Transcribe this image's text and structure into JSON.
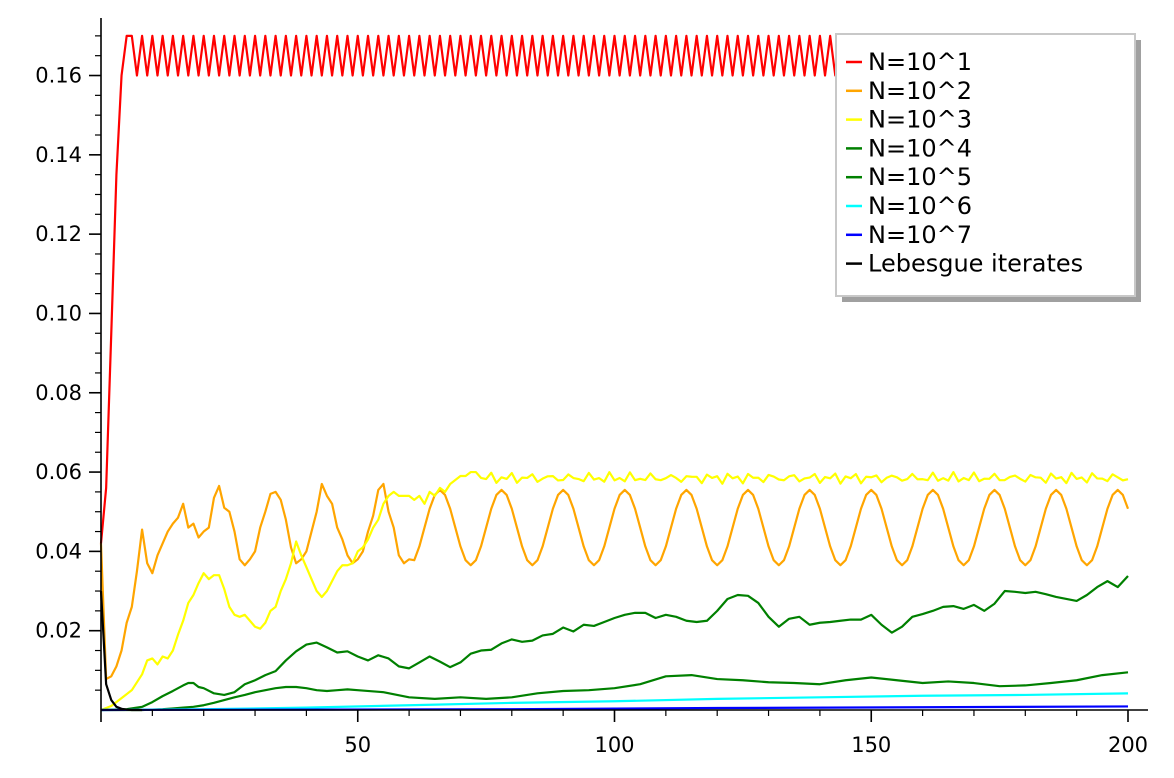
{
  "chart_data": {
    "type": "line",
    "title": "",
    "xlabel": "",
    "ylabel": "",
    "xlim": [
      0,
      200
    ],
    "ylim": [
      0,
      0.174
    ],
    "x_ticks": [
      50,
      100,
      150,
      200
    ],
    "y_ticks": [
      0.02,
      0.04,
      0.06,
      0.08,
      0.1,
      0.12,
      0.14,
      0.16
    ],
    "x_tick_labels": [
      "50",
      "100",
      "150",
      "200"
    ],
    "y_tick_labels": [
      "0.02",
      "0.04",
      "0.06",
      "0.08",
      "0.10",
      "0.12",
      "0.14",
      "0.16"
    ],
    "grid": false,
    "legend_position": "top-right",
    "series": [
      {
        "name": "N=10^1",
        "color": "#ff0000",
        "pattern": "alternating",
        "x": [
          0,
          1,
          2,
          3,
          4,
          5
        ],
        "values": [
          0.042,
          0.056,
          0.095,
          0.135,
          0.16,
          0.17
        ],
        "periodic": {
          "start": 6,
          "end": 200,
          "high": 0.17,
          "low": 0.16,
          "period": 2
        }
      },
      {
        "name": "N=10^2",
        "color": "#ffa500",
        "pattern": "points",
        "x": [
          0,
          1,
          2,
          3,
          4,
          5,
          6,
          7,
          8,
          9,
          10,
          11,
          12,
          13,
          14,
          15,
          16,
          17,
          18,
          19,
          20,
          21,
          22,
          23,
          24,
          25,
          26,
          27,
          28,
          29,
          30,
          31,
          32,
          33,
          34,
          35,
          36,
          37,
          38,
          39,
          40,
          41,
          42,
          43,
          44,
          45,
          46,
          47,
          48,
          49,
          50,
          51,
          52,
          53,
          54,
          55,
          56,
          57,
          58,
          59,
          60
        ],
        "values": [
          0.042,
          0.0078,
          0.0085,
          0.011,
          0.015,
          0.022,
          0.026,
          0.035,
          0.0455,
          0.037,
          0.0345,
          0.039,
          0.042,
          0.045,
          0.047,
          0.0485,
          0.052,
          0.046,
          0.047,
          0.0435,
          0.045,
          0.046,
          0.0535,
          0.0565,
          0.051,
          0.05,
          0.045,
          0.038,
          0.0365,
          0.038,
          0.04,
          0.046,
          0.05,
          0.0545,
          0.055,
          0.053,
          0.048,
          0.041,
          0.037,
          0.038,
          0.04,
          0.045,
          0.05,
          0.057,
          0.054,
          0.052,
          0.046,
          0.043,
          0.039,
          0.037,
          0.038,
          0.04,
          0.045,
          0.049,
          0.0555,
          0.057,
          0.05,
          0.046,
          0.039,
          0.037,
          0.038
        ],
        "periodic_wave": {
          "start": 60,
          "end": 200,
          "period": 12,
          "min": 0.0365,
          "max": 0.0555
        }
      },
      {
        "name": "N=10^3",
        "color": "#ffff00",
        "pattern": "points",
        "x": [
          0,
          2,
          4,
          6,
          8,
          9,
          10,
          11,
          12,
          13,
          14,
          15,
          16,
          17,
          18,
          19,
          20,
          21,
          22,
          23,
          24,
          25,
          26,
          27,
          28,
          29,
          30,
          31,
          32,
          33,
          34,
          35,
          36,
          37,
          38,
          39,
          40,
          41,
          42,
          43,
          44,
          45,
          46,
          47,
          48,
          49,
          50,
          51,
          52,
          53,
          54,
          55,
          56,
          57,
          58,
          59,
          60,
          61,
          62,
          63,
          64,
          65,
          66,
          67,
          68,
          69,
          70,
          71,
          72,
          73
        ],
        "values": [
          0.0,
          0.001,
          0.003,
          0.005,
          0.009,
          0.0125,
          0.013,
          0.0115,
          0.0135,
          0.013,
          0.015,
          0.019,
          0.0225,
          0.027,
          0.029,
          0.032,
          0.0345,
          0.033,
          0.034,
          0.034,
          0.0305,
          0.026,
          0.024,
          0.0235,
          0.024,
          0.0225,
          0.021,
          0.0205,
          0.022,
          0.025,
          0.026,
          0.03,
          0.033,
          0.037,
          0.0425,
          0.039,
          0.036,
          0.033,
          0.03,
          0.0285,
          0.03,
          0.0325,
          0.035,
          0.0365,
          0.0365,
          0.037,
          0.04,
          0.041,
          0.043,
          0.046,
          0.048,
          0.052,
          0.054,
          0.055,
          0.054,
          0.054,
          0.054,
          0.053,
          0.054,
          0.052,
          0.055,
          0.054,
          0.056,
          0.055,
          0.057,
          0.058,
          0.059,
          0.059,
          0.06,
          0.06
        ],
        "noise_band": {
          "start": 73,
          "end": 200,
          "center": 0.0585,
          "amplitude": 0.0015
        }
      },
      {
        "name": "N=10^4",
        "color": "#008000",
        "pattern": "points",
        "x": [
          0,
          5,
          8,
          10,
          12,
          14,
          16,
          17,
          18,
          19,
          20,
          22,
          24,
          26,
          28,
          30,
          32,
          34,
          36,
          38,
          40,
          42,
          44,
          46,
          48,
          50,
          52,
          54,
          56,
          58,
          60,
          62,
          64,
          66,
          68,
          70,
          72,
          74,
          76,
          78,
          80,
          82,
          84,
          86,
          88,
          90,
          92,
          94,
          96,
          98,
          100,
          102,
          104,
          106,
          108,
          110,
          112,
          114,
          116,
          118,
          120,
          122,
          124,
          126,
          128,
          130,
          132,
          134,
          136,
          138,
          140,
          142,
          144,
          146,
          148,
          150,
          152,
          154,
          156,
          158,
          160,
          162,
          164,
          166,
          168,
          170,
          172,
          174,
          176,
          178,
          180,
          182,
          184,
          186,
          188,
          190,
          192,
          194,
          196,
          198,
          200
        ],
        "values": [
          0.0,
          0.0002,
          0.0008,
          0.002,
          0.0035,
          0.0048,
          0.0062,
          0.0068,
          0.0068,
          0.0058,
          0.0055,
          0.0042,
          0.0038,
          0.0045,
          0.0065,
          0.0075,
          0.0088,
          0.0098,
          0.0125,
          0.0148,
          0.0165,
          0.017,
          0.0158,
          0.0145,
          0.0148,
          0.0135,
          0.0125,
          0.0138,
          0.013,
          0.011,
          0.0105,
          0.012,
          0.0135,
          0.0122,
          0.0108,
          0.012,
          0.0142,
          0.015,
          0.0152,
          0.0168,
          0.0178,
          0.0172,
          0.0175,
          0.0188,
          0.0192,
          0.0208,
          0.0198,
          0.0215,
          0.0212,
          0.0222,
          0.0232,
          0.024,
          0.0245,
          0.0245,
          0.0232,
          0.024,
          0.0235,
          0.0225,
          0.0222,
          0.0225,
          0.025,
          0.028,
          0.029,
          0.0288,
          0.027,
          0.0235,
          0.021,
          0.023,
          0.0235,
          0.0215,
          0.022,
          0.0222,
          0.0225,
          0.0228,
          0.0228,
          0.024,
          0.0215,
          0.0195,
          0.021,
          0.0235,
          0.0242,
          0.025,
          0.026,
          0.0262,
          0.0255,
          0.0265,
          0.025,
          0.0268,
          0.03,
          0.0298,
          0.0295,
          0.0298,
          0.0292,
          0.0285,
          0.028,
          0.0275,
          0.029,
          0.031,
          0.0325,
          0.031,
          0.0338
        ]
      },
      {
        "name": "N=10^5",
        "color": "#008000",
        "pattern": "points",
        "x": [
          0,
          8,
          12,
          14,
          16,
          18,
          20,
          22,
          24,
          26,
          28,
          30,
          32,
          34,
          36,
          38,
          40,
          42,
          44,
          46,
          48,
          50,
          55,
          60,
          65,
          70,
          75,
          80,
          85,
          90,
          95,
          100,
          105,
          110,
          115,
          120,
          125,
          130,
          135,
          140,
          145,
          150,
          155,
          160,
          165,
          170,
          175,
          180,
          185,
          190,
          195,
          200
        ],
        "values": [
          0.0,
          0.0,
          0.0002,
          0.0004,
          0.0006,
          0.0008,
          0.0012,
          0.0018,
          0.0025,
          0.0032,
          0.0038,
          0.0045,
          0.005,
          0.0055,
          0.0058,
          0.0058,
          0.0055,
          0.005,
          0.0048,
          0.005,
          0.0052,
          0.005,
          0.0045,
          0.0032,
          0.0028,
          0.0032,
          0.0028,
          0.0032,
          0.0042,
          0.0048,
          0.005,
          0.0055,
          0.0065,
          0.0085,
          0.0088,
          0.0078,
          0.0075,
          0.007,
          0.0068,
          0.0065,
          0.0075,
          0.0082,
          0.0075,
          0.0068,
          0.0072,
          0.0068,
          0.006,
          0.0062,
          0.0068,
          0.0075,
          0.0088,
          0.0095
        ]
      },
      {
        "name": "N=10^6",
        "color": "#00ffff",
        "pattern": "points",
        "x": [
          0,
          20,
          40,
          60,
          80,
          100,
          120,
          140,
          160,
          180,
          200
        ],
        "values": [
          0.0,
          0.0002,
          0.0006,
          0.0012,
          0.0018,
          0.0022,
          0.0028,
          0.0032,
          0.0036,
          0.0038,
          0.0042
        ]
      },
      {
        "name": "N=10^7",
        "color": "#0000ff",
        "pattern": "points",
        "x": [
          0,
          40,
          80,
          120,
          160,
          200
        ],
        "values": [
          0.0,
          0.0001,
          0.0002,
          0.0005,
          0.0007,
          0.0009
        ]
      },
      {
        "name": "Lebesgue iterates",
        "color": "#000000",
        "pattern": "points",
        "x": [
          0,
          1,
          2,
          3,
          4,
          5,
          6,
          7,
          8
        ],
        "values": [
          0.03,
          0.0065,
          0.0025,
          0.0008,
          0.0003,
          0.0001,
          0.0,
          0.0,
          0.0
        ]
      }
    ]
  }
}
